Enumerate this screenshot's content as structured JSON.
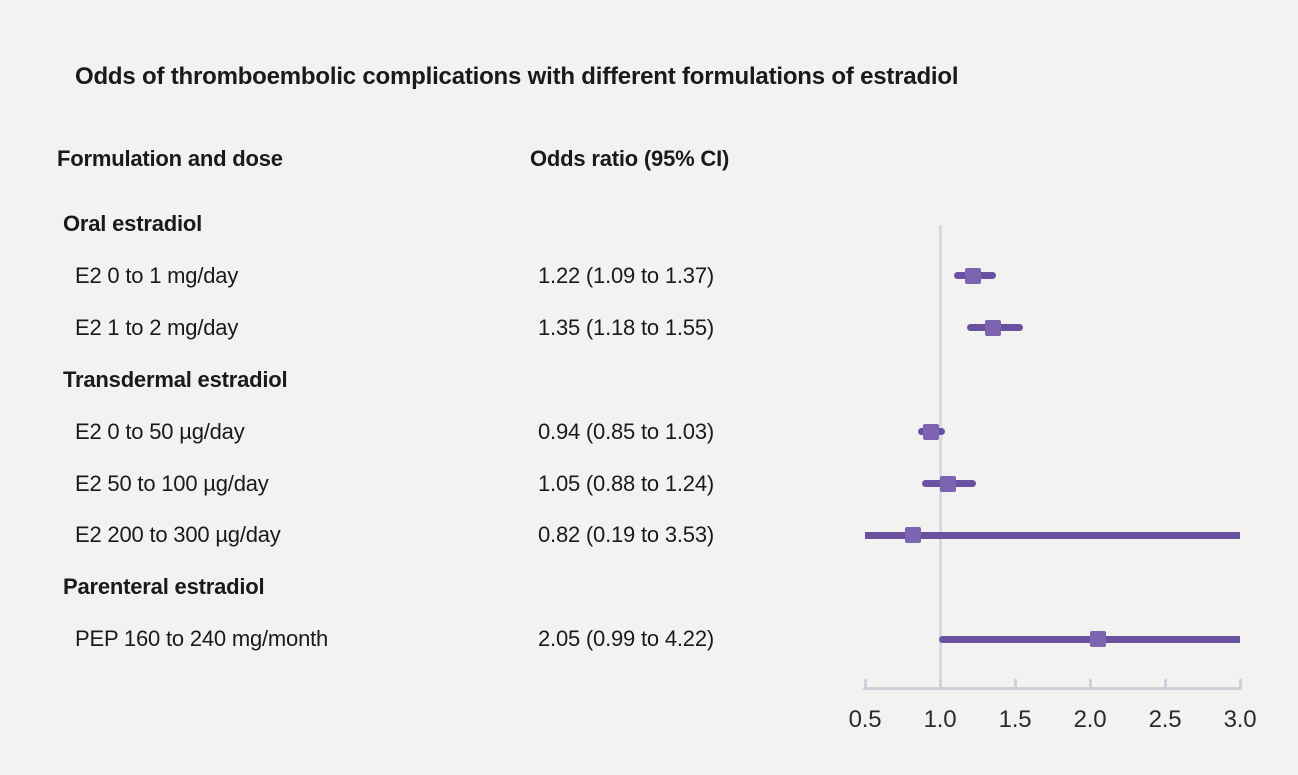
{
  "title": "Odds of thromboembolic complications with different formulations of estradiol",
  "columns": {
    "formulation": "Formulation and dose",
    "odds_ratio": "Odds ratio (95% CI)"
  },
  "colors": {
    "background": "#f2f2f1",
    "text": "#1a1a1a",
    "ci_line": "#6a51a0",
    "marker": "#7d64b0",
    "axis": "#ccd1db",
    "reference_line": "#d6dae3"
  },
  "chart_data": {
    "type": "forest",
    "title": "Odds of thromboembolic complications with different formulations of estradiol",
    "xlim": [
      0.5,
      3.0
    ],
    "reference_value": 1.0,
    "x_ticks": [
      0.5,
      1.0,
      1.5,
      2.0,
      2.5,
      3.0
    ],
    "x_tick_labels": [
      "0.5",
      "1.0",
      "1.5",
      "2.0",
      "2.5",
      "3.0"
    ],
    "grid": false,
    "rows": [
      {
        "label": "Oral estradiol",
        "group": true
      },
      {
        "label": "E2 0 to 1 mg/day",
        "or_text": "1.22 (1.09 to 1.37)",
        "estimate": 1.22,
        "ci_low": 1.09,
        "ci_high": 1.37
      },
      {
        "label": "E2 1 to 2 mg/day",
        "or_text": "1.35 (1.18 to 1.55)",
        "estimate": 1.35,
        "ci_low": 1.18,
        "ci_high": 1.55
      },
      {
        "label": "Transdermal estradiol",
        "group": true
      },
      {
        "label": "E2 0 to 50 µg/day",
        "or_text": "0.94 (0.85 to 1.03)",
        "estimate": 0.94,
        "ci_low": 0.85,
        "ci_high": 1.03
      },
      {
        "label": "E2 50 to 100 µg/day",
        "or_text": "1.05 (0.88 to 1.24)",
        "estimate": 1.05,
        "ci_low": 0.88,
        "ci_high": 1.24
      },
      {
        "label": "E2 200 to 300 µg/day",
        "or_text": "0.82 (0.19 to 3.53)",
        "estimate": 0.82,
        "ci_low": 0.19,
        "ci_high": 3.53
      },
      {
        "label": "Parenteral estradiol",
        "group": true
      },
      {
        "label": "PEP 160 to 240 mg/month",
        "or_text": "2.05 (0.99 to 4.22)",
        "estimate": 2.05,
        "ci_low": 0.99,
        "ci_high": 4.22
      }
    ]
  }
}
